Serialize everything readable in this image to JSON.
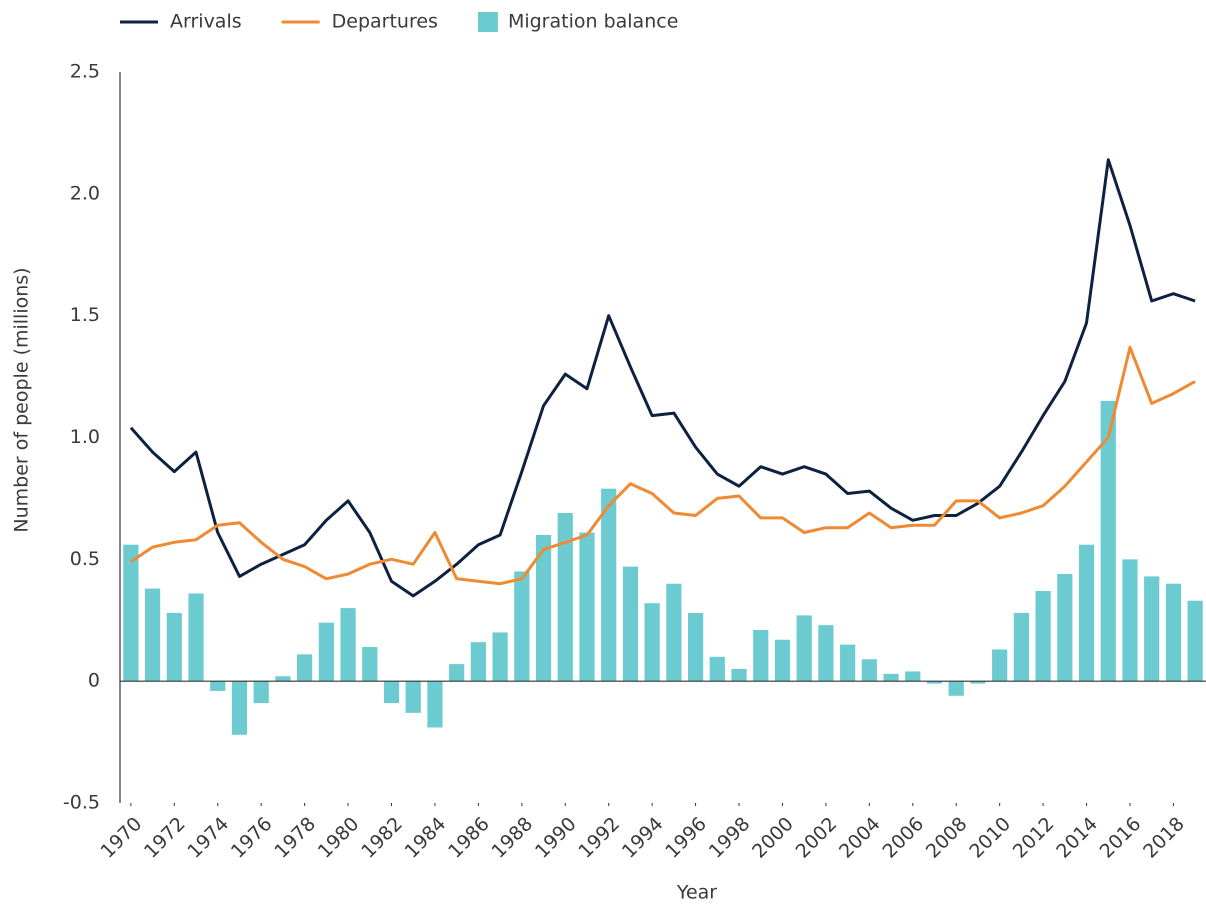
{
  "chart_data": {
    "type": "combo",
    "xlabel": "Year",
    "ylabel": "Number of people (millions)",
    "x": [
      1970,
      1971,
      1972,
      1973,
      1974,
      1975,
      1976,
      1977,
      1978,
      1979,
      1980,
      1981,
      1982,
      1983,
      1984,
      1985,
      1986,
      1987,
      1988,
      1989,
      1990,
      1991,
      1992,
      1993,
      1994,
      1995,
      1996,
      1997,
      1998,
      1999,
      2000,
      2001,
      2002,
      2003,
      2004,
      2005,
      2006,
      2007,
      2008,
      2009,
      2010,
      2011,
      2012,
      2013,
      2014,
      2015,
      2016,
      2017,
      2018,
      2019
    ],
    "xlim": [
      1969.5,
      2019.5
    ],
    "xticks": [
      1970,
      1972,
      1974,
      1976,
      1978,
      1980,
      1982,
      1984,
      1986,
      1988,
      1990,
      1992,
      1994,
      1996,
      1998,
      2000,
      2002,
      2004,
      2006,
      2008,
      2010,
      2012,
      2014,
      2016,
      2018
    ],
    "ylim": [
      -0.5,
      2.5
    ],
    "yticks": [
      -0.5,
      0,
      0.5,
      {
        "value": 1.0,
        "label": "1.0"
      },
      1.5,
      {
        "value": 2.0,
        "label": "2.0"
      },
      2.5
    ],
    "grid": false,
    "legend": "top-left",
    "series": [
      {
        "name": "Arrivals",
        "type": "line",
        "color": "#0d2240",
        "values": [
          1.04,
          0.94,
          0.86,
          0.94,
          0.61,
          0.43,
          0.48,
          0.52,
          0.56,
          0.66,
          0.74,
          0.61,
          0.41,
          0.35,
          0.41,
          0.48,
          0.56,
          0.6,
          0.86,
          1.13,
          1.26,
          1.2,
          1.5,
          1.29,
          1.09,
          1.1,
          0.96,
          0.85,
          0.8,
          0.88,
          0.85,
          0.88,
          0.85,
          0.77,
          0.78,
          0.71,
          0.66,
          0.68,
          0.68,
          0.73,
          0.8,
          0.94,
          1.09,
          1.23,
          1.47,
          2.14,
          1.87,
          1.56,
          1.59,
          1.56
        ]
      },
      {
        "name": "Departures",
        "type": "line",
        "color": "#f08a32",
        "values": [
          0.49,
          0.55,
          0.57,
          0.58,
          0.64,
          0.65,
          0.57,
          0.5,
          0.47,
          0.42,
          0.44,
          0.48,
          0.5,
          0.48,
          0.61,
          0.42,
          0.41,
          0.4,
          0.42,
          0.54,
          0.57,
          0.6,
          0.72,
          0.81,
          0.77,
          0.69,
          0.68,
          0.75,
          0.76,
          0.67,
          0.67,
          0.61,
          0.63,
          0.63,
          0.69,
          0.63,
          0.64,
          0.64,
          0.74,
          0.74,
          0.67,
          0.69,
          0.72,
          0.8,
          0.9,
          1.0,
          1.37,
          1.14,
          1.18,
          1.23
        ]
      },
      {
        "name": "Migration balance",
        "type": "bar",
        "color": "#6ccbd1",
        "values": [
          0.56,
          0.38,
          0.28,
          0.36,
          -0.04,
          -0.22,
          -0.09,
          0.02,
          0.11,
          0.24,
          0.3,
          0.14,
          -0.09,
          -0.13,
          -0.19,
          0.07,
          0.16,
          0.2,
          0.45,
          0.6,
          0.69,
          0.61,
          0.79,
          0.47,
          0.32,
          0.4,
          0.28,
          0.1,
          0.05,
          0.21,
          0.17,
          0.27,
          0.23,
          0.15,
          0.09,
          0.03,
          0.04,
          -0.01,
          -0.06,
          -0.01,
          0.13,
          0.28,
          0.37,
          0.44,
          0.56,
          1.15,
          0.5,
          0.43,
          0.4,
          0.33
        ]
      }
    ]
  }
}
